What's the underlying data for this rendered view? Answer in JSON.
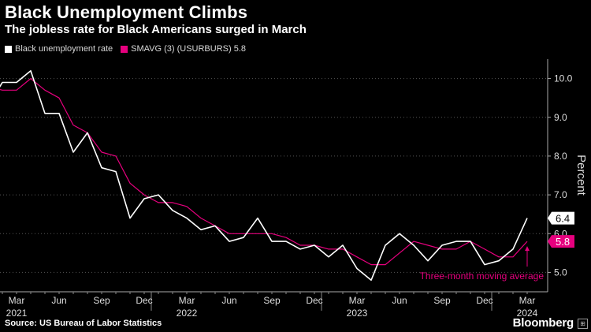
{
  "header": {
    "title": "Black Unemployment Climbs",
    "subtitle": "The jobless rate for Black Americans surged in March"
  },
  "footer": {
    "source": "Source: US Bureau of Labor Statistics",
    "brand": "Bloomberg"
  },
  "colors": {
    "background": "#000000",
    "series_white": "#ffffff",
    "series_magenta": "#e6007e",
    "grid": "#555555"
  },
  "chart_data": {
    "type": "line",
    "ylabel": "Percent",
    "ylim": [
      4.5,
      10.5
    ],
    "yticks": [
      "10.0",
      "9.0",
      "8.0",
      "7.0",
      "6.0",
      "5.0"
    ],
    "grid": "horizontal-dotted",
    "legend_position": "top-left",
    "x": [
      "2021-01",
      "2021-02",
      "2021-03",
      "2021-04",
      "2021-05",
      "2021-06",
      "2021-07",
      "2021-08",
      "2021-09",
      "2021-10",
      "2021-11",
      "2021-12",
      "2022-01",
      "2022-02",
      "2022-03",
      "2022-04",
      "2022-05",
      "2022-06",
      "2022-07",
      "2022-08",
      "2022-09",
      "2022-10",
      "2022-11",
      "2022-12",
      "2023-01",
      "2023-02",
      "2023-03",
      "2023-04",
      "2023-05",
      "2023-06",
      "2023-07",
      "2023-08",
      "2023-09",
      "2023-10",
      "2023-11",
      "2023-12",
      "2024-01",
      "2024-02",
      "2024-03"
    ],
    "xtick_labels": [
      {
        "month": "Mar",
        "year": "2021",
        "x": "2021-03"
      },
      {
        "month": "Jun",
        "year": "",
        "x": "2021-06"
      },
      {
        "month": "Sep",
        "year": "",
        "x": "2021-09"
      },
      {
        "month": "Dec",
        "year": "",
        "x": "2021-12"
      },
      {
        "month": "Mar",
        "year": "2022",
        "x": "2022-03"
      },
      {
        "month": "Jun",
        "year": "",
        "x": "2022-06"
      },
      {
        "month": "Sep",
        "year": "",
        "x": "2022-09"
      },
      {
        "month": "Dec",
        "year": "",
        "x": "2022-12"
      },
      {
        "month": "Mar",
        "year": "2023",
        "x": "2023-03"
      },
      {
        "month": "Jun",
        "year": "",
        "x": "2023-06"
      },
      {
        "month": "Sep",
        "year": "",
        "x": "2023-09"
      },
      {
        "month": "Dec",
        "year": "",
        "x": "2023-12"
      },
      {
        "month": "Mar",
        "year": "2024",
        "x": "2024-03"
      }
    ],
    "series": [
      {
        "name": "Black unemployment rate",
        "color": "#ffffff",
        "last_label": "6.4",
        "values": [
          9.3,
          9.9,
          9.9,
          10.2,
          9.1,
          9.1,
          8.1,
          8.6,
          7.7,
          7.6,
          6.4,
          6.9,
          7.0,
          6.6,
          6.4,
          6.1,
          6.2,
          5.8,
          5.9,
          6.4,
          5.8,
          5.8,
          5.6,
          5.7,
          5.4,
          5.7,
          5.1,
          4.8,
          5.7,
          6.0,
          5.7,
          5.3,
          5.7,
          5.8,
          5.8,
          5.2,
          5.3,
          5.6,
          6.4
        ]
      },
      {
        "name": "SMAVG (3) (USURBURS) 5.8",
        "color": "#e6007e",
        "last_label": "5.8",
        "values": [
          9.8,
          9.7,
          9.7,
          10.0,
          9.7,
          9.5,
          8.8,
          8.6,
          8.1,
          8.0,
          7.3,
          7.0,
          6.8,
          6.8,
          6.7,
          6.4,
          6.2,
          6.0,
          6.0,
          6.0,
          6.0,
          5.9,
          5.7,
          5.7,
          5.6,
          5.6,
          5.4,
          5.2,
          5.2,
          5.5,
          5.8,
          5.7,
          5.6,
          5.6,
          5.8,
          5.6,
          5.4,
          5.4,
          5.8
        ]
      }
    ],
    "annotations": [
      {
        "text": "Three-month moving average",
        "color": "#e6007e"
      }
    ]
  }
}
